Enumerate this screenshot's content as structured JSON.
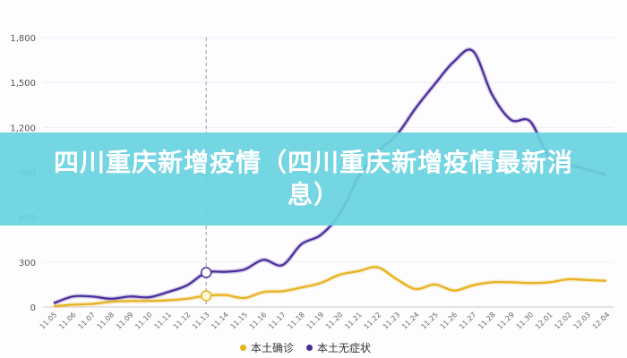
{
  "banner": {
    "title": "四川重庆新增疫情（四川重庆新增疫情最新消息）"
  },
  "legend": {
    "items": [
      {
        "label": "本土确诊",
        "color": "#e8b21e"
      },
      {
        "label": "本土无症状",
        "color": "#4b2c9a"
      }
    ]
  },
  "chart_data": {
    "type": "line",
    "title": "",
    "xlabel": "",
    "ylabel": "",
    "ylim": [
      0,
      1800
    ],
    "yticks": [
      "0",
      "300",
      "600",
      "900",
      "1,200",
      "1,500",
      "1,800"
    ],
    "grid": true,
    "legend_position": "bottom",
    "highlight_index": 8,
    "x": [
      "11.05",
      "11.06",
      "11.07",
      "11.08",
      "11.09",
      "11.10",
      "11.11",
      "11.12",
      "11.13",
      "11.14",
      "11.15",
      "11.16",
      "11.17",
      "11.18",
      "11.19",
      "11.20",
      "11.21",
      "11.22",
      "11.23",
      "11.24",
      "11.25",
      "11.26",
      "11.27",
      "11.28",
      "11.29",
      "11.30",
      "12.01",
      "12.02",
      "12.03",
      "12.04"
    ],
    "series": [
      {
        "name": "本土确诊",
        "color": "#e8b21e",
        "values": [
          5,
          15,
          20,
          35,
          40,
          40,
          45,
          55,
          75,
          80,
          60,
          100,
          105,
          130,
          160,
          215,
          240,
          265,
          185,
          120,
          150,
          110,
          145,
          165,
          165,
          160,
          165,
          185,
          180,
          175
        ]
      },
      {
        "name": "本土无症状",
        "color": "#4b2c9a",
        "values": [
          25,
          70,
          70,
          55,
          70,
          65,
          100,
          145,
          230,
          235,
          250,
          315,
          280,
          420,
          480,
          620,
          870,
          1040,
          1150,
          1330,
          1490,
          1640,
          1710,
          1420,
          1250,
          1240,
          1000,
          950,
          920,
          880
        ]
      }
    ]
  }
}
